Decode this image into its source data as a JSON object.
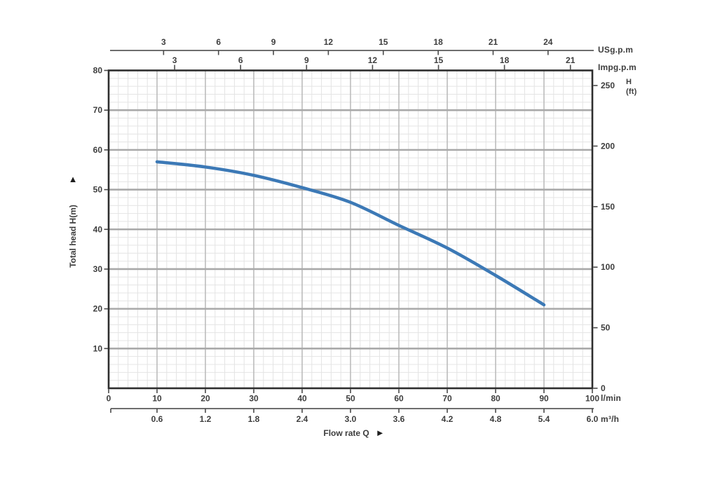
{
  "labels": {
    "usgpm": "USg.p.m",
    "impgpm": "Impg.p.m",
    "right_axis_line1": "H",
    "right_axis_line2": "(ft)",
    "lmin": "l/min",
    "m3h": "m³/h",
    "flow": "Flow rate Q",
    "y_title": "Total head H(m)"
  },
  "icons": {
    "up_arrow": "▲",
    "right_arrow": "►"
  },
  "colors": {
    "curve": "#3c79b6",
    "border": "#2e2e2e",
    "grid_major_h": "#a9a9a9",
    "grid_major_v": "#bdbdbd",
    "grid_minor": "#e4e4e4",
    "axis_line": "#6e6e6e",
    "tick": "#4a4a4a",
    "text": "#3d3d3d",
    "background": "#ffffff"
  },
  "chart_data": {
    "type": "line",
    "xlabel": "Flow rate Q",
    "ylabel": "Total head H(m)",
    "xlim_lmin": [
      0,
      100
    ],
    "ylim_m": [
      0,
      80
    ],
    "grid": {
      "minor_step_lmin": 2,
      "minor_step_m": 2,
      "major_step_lmin": 10,
      "major_step_m": 10
    },
    "series": [
      {
        "name": "pump-head-capacity-curve",
        "color": "#3c79b6",
        "points_lmin_m": [
          [
            10,
            57.0
          ],
          [
            20,
            55.7
          ],
          [
            30,
            53.6
          ],
          [
            40,
            50.5
          ],
          [
            50,
            46.8
          ],
          [
            60,
            41.0
          ],
          [
            70,
            35.3
          ],
          [
            80,
            28.4
          ],
          [
            90,
            21.0
          ]
        ]
      }
    ],
    "axes": {
      "top_usgpm": {
        "label": "USg.p.m",
        "ticks": [
          3,
          6,
          9,
          12,
          15,
          18,
          21,
          24
        ],
        "lmin_per_unit": 3.785
      },
      "top_impgpm": {
        "label": "Impg.p.m",
        "ticks": [
          3,
          6,
          9,
          12,
          15,
          18,
          21
        ],
        "lmin_per_unit": 4.546
      },
      "bottom_lmin": {
        "label": "l/min",
        "ticks": [
          0,
          10,
          20,
          30,
          40,
          50,
          60,
          70,
          80,
          90,
          100
        ],
        "lmin_per_unit": 1
      },
      "bottom_m3h": {
        "label": "m³/h",
        "ticks": [
          0.6,
          1.2,
          1.8,
          2.4,
          3.0,
          3.6,
          4.2,
          4.8,
          5.4,
          6.0
        ],
        "lmin_per_unit": 16.6667
      },
      "left_m": {
        "label": "Total head H(m)",
        "ticks": [
          10,
          20,
          30,
          40,
          50,
          60,
          70,
          80
        ]
      },
      "right_ft": {
        "label": "H (ft)",
        "ticks": [
          0,
          50,
          100,
          150,
          200,
          250
        ],
        "m_per_unit": 0.3048
      }
    }
  }
}
